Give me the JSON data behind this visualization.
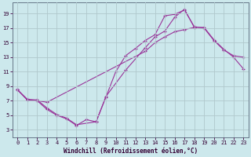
{
  "xlabel": "Windchill (Refroidissement éolien,°C)",
  "background_color": "#cce8ec",
  "grid_color": "#b0c8cc",
  "line_color": "#993399",
  "xlim": [
    -0.5,
    23.5
  ],
  "ylim": [
    2,
    20.5
  ],
  "xticks": [
    0,
    1,
    2,
    3,
    4,
    5,
    6,
    7,
    8,
    9,
    10,
    11,
    12,
    13,
    14,
    15,
    16,
    17,
    18,
    19,
    20,
    21,
    22,
    23
  ],
  "yticks": [
    3,
    5,
    7,
    9,
    11,
    13,
    15,
    17,
    19
  ],
  "line1_x": [
    0,
    1,
    2,
    3,
    4,
    5,
    6,
    8,
    9,
    11,
    13,
    14,
    15,
    16,
    17,
    18
  ],
  "line1_y": [
    8.5,
    7.2,
    7.1,
    6.0,
    5.1,
    4.6,
    3.7,
    4.1,
    7.6,
    11.2,
    14.3,
    15.8,
    16.6,
    18.5,
    19.6,
    17.1
  ],
  "line2_x": [
    0,
    1,
    2,
    3,
    4,
    5,
    6,
    7,
    8,
    9,
    10,
    11,
    12,
    13,
    14,
    15,
    16,
    17,
    18,
    19,
    20,
    21,
    22,
    23
  ],
  "line2_y": [
    8.5,
    7.1,
    7.0,
    5.8,
    5.0,
    4.5,
    3.6,
    4.4,
    4.1,
    7.5,
    11.0,
    13.2,
    14.2,
    15.3,
    16.1,
    18.7,
    18.9,
    19.5,
    17.2,
    17.0,
    15.3,
    14.0,
    13.2,
    13.0
  ],
  "line3_x": [
    0,
    1,
    2,
    3,
    13,
    14,
    15,
    16,
    17,
    18,
    19,
    20,
    21,
    22,
    23
  ],
  "line3_y": [
    8.5,
    7.1,
    7.0,
    6.8,
    13.8,
    15.0,
    15.8,
    16.5,
    16.8,
    17.1,
    17.1,
    15.4,
    14.1,
    13.0,
    11.4
  ]
}
